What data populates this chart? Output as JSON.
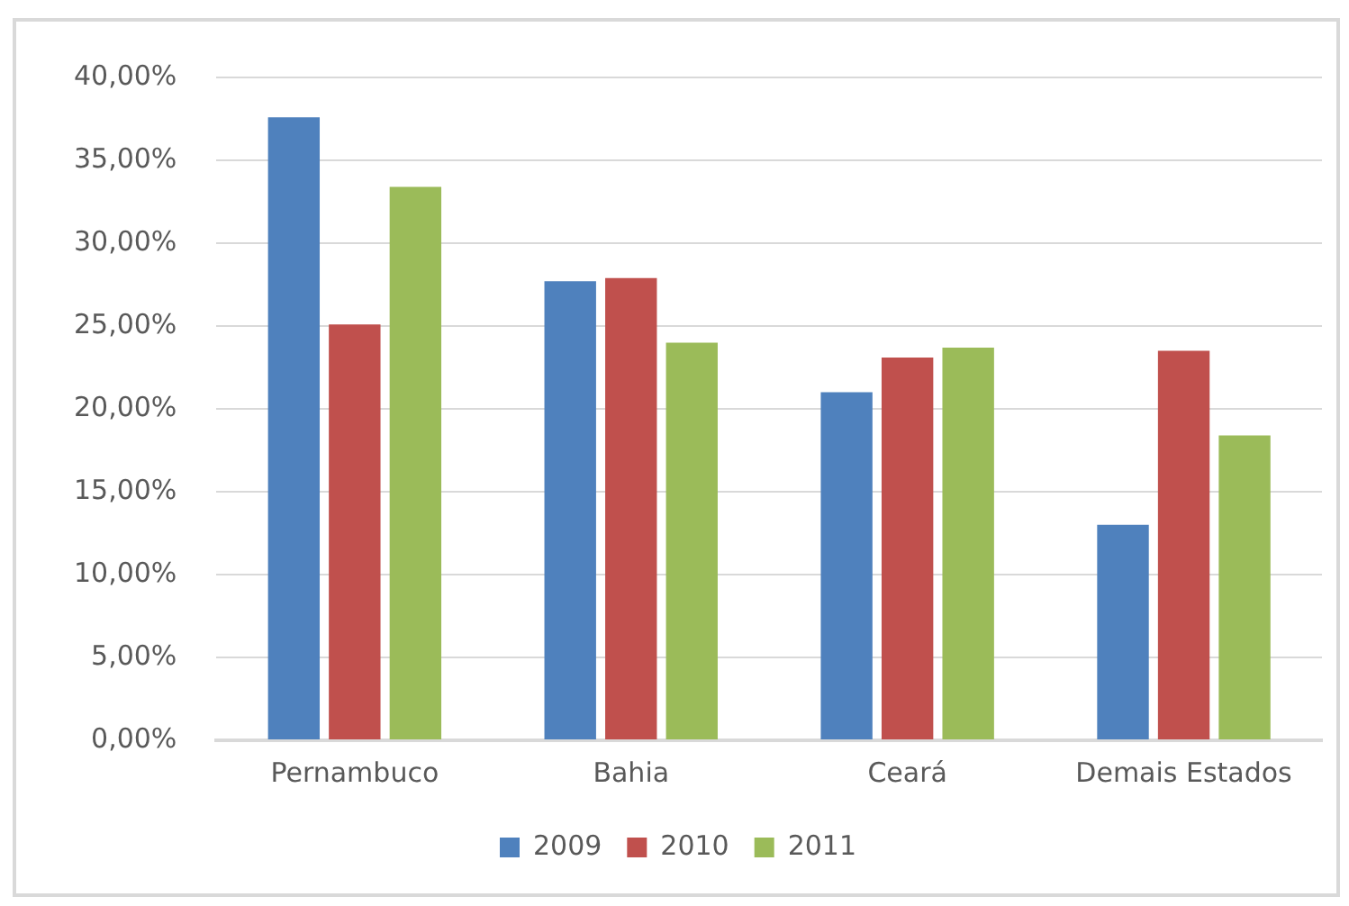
{
  "chart_data": {
    "type": "bar",
    "categories": [
      "Pernambuco",
      "Bahia",
      "Ceará",
      "Demais Estados"
    ],
    "series": [
      {
        "name": "2009",
        "color": "#4f81bd",
        "values": [
          37.6,
          27.7,
          21.0,
          13.0
        ]
      },
      {
        "name": "2010",
        "color": "#c0504d",
        "values": [
          25.1,
          27.9,
          23.1,
          23.5
        ]
      },
      {
        "name": "2011",
        "color": "#9bbb59",
        "values": [
          33.4,
          24.0,
          23.7,
          18.4
        ]
      }
    ],
    "ylim": [
      0,
      40
    ],
    "yticks": [
      {
        "value": 0,
        "label": "0,00%"
      },
      {
        "value": 5,
        "label": "5,00%"
      },
      {
        "value": 10,
        "label": "10,00%"
      },
      {
        "value": 15,
        "label": "15,00%"
      },
      {
        "value": 20,
        "label": "20,00%"
      },
      {
        "value": 25,
        "label": "25,00%"
      },
      {
        "value": 30,
        "label": "30,00%"
      },
      {
        "value": 35,
        "label": "35,00%"
      },
      {
        "value": 40,
        "label": "40,00%"
      }
    ],
    "grid": "y",
    "legend": "bottom"
  }
}
